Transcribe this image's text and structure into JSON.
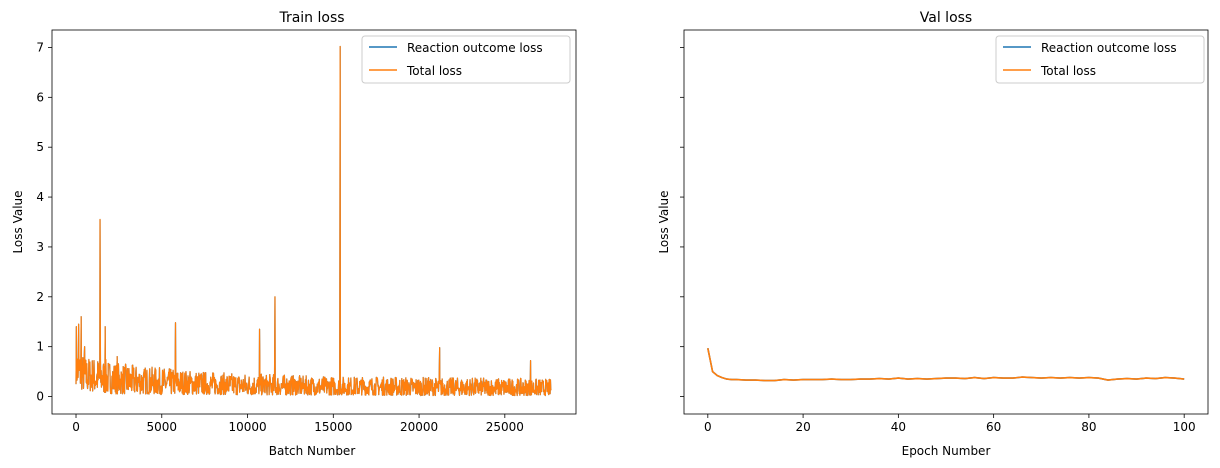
{
  "chart_data": [
    {
      "type": "line",
      "title": "Train loss",
      "xlabel": "Batch Number",
      "ylabel": "Loss Value",
      "xlim": [
        -1400,
        29150
      ],
      "ylim": [
        -0.35,
        7.35
      ],
      "xticks": [
        0,
        5000,
        10000,
        15000,
        20000,
        25000
      ],
      "xtick_labels": [
        "0",
        "5000",
        "10000",
        "15000",
        "20000",
        "25000"
      ],
      "yticks": [
        0,
        1,
        2,
        3,
        4,
        5,
        6,
        7
      ],
      "ytick_labels": [
        "0",
        "1",
        "2",
        "3",
        "4",
        "5",
        "6",
        "7"
      ],
      "grid": false,
      "legend_position": "top-right",
      "series": [
        {
          "name": "Reaction outcome loss",
          "color": "#1f77b4",
          "note_visual": "hidden beneath Total loss (identical values)",
          "x": [
            0,
            100,
            250,
            400,
            600,
            900,
            1200,
            1400,
            1650,
            2000,
            2500,
            3000,
            4000,
            5000,
            5800,
            7000,
            8500,
            10000,
            10700,
            11600,
            13000,
            15400,
            17000,
            19000,
            21200,
            23000,
            25000,
            26500,
            27700
          ],
          "low": [
            0.25,
            0.2,
            0.15,
            0.12,
            0.1,
            0.1,
            0.08,
            0.08,
            0.06,
            0.06,
            0.05,
            0.05,
            0.05,
            0.04,
            0.04,
            0.04,
            0.04,
            0.03,
            0.03,
            0.03,
            0.03,
            0.03,
            0.03,
            0.02,
            0.02,
            0.02,
            0.02,
            0.02,
            0.02
          ],
          "high": [
            1.1,
            1.0,
            0.9,
            0.85,
            0.8,
            0.8,
            0.78,
            0.78,
            0.75,
            0.72,
            0.68,
            0.65,
            0.6,
            0.58,
            0.55,
            0.52,
            0.48,
            0.46,
            0.45,
            0.45,
            0.42,
            0.4,
            0.4,
            0.4,
            0.38,
            0.38,
            0.37,
            0.36,
            0.35
          ]
        },
        {
          "name": "Total loss",
          "color": "#ff7f0e",
          "x": [
            0,
            100,
            250,
            400,
            600,
            900,
            1200,
            1400,
            1650,
            2000,
            2500,
            3000,
            4000,
            5000,
            5800,
            7000,
            8500,
            10000,
            10700,
            11600,
            13000,
            15400,
            17000,
            19000,
            21200,
            23000,
            25000,
            26500,
            27700
          ],
          "low": [
            0.25,
            0.2,
            0.15,
            0.12,
            0.1,
            0.1,
            0.08,
            0.08,
            0.06,
            0.06,
            0.05,
            0.05,
            0.05,
            0.04,
            0.04,
            0.04,
            0.04,
            0.03,
            0.03,
            0.03,
            0.03,
            0.03,
            0.03,
            0.02,
            0.02,
            0.02,
            0.02,
            0.02,
            0.02
          ],
          "high": [
            1.1,
            1.0,
            0.9,
            0.85,
            0.8,
            0.8,
            0.78,
            0.78,
            0.75,
            0.72,
            0.68,
            0.65,
            0.6,
            0.58,
            0.55,
            0.52,
            0.48,
            0.46,
            0.45,
            0.45,
            0.42,
            0.4,
            0.4,
            0.4,
            0.38,
            0.38,
            0.37,
            0.36,
            0.35
          ]
        }
      ],
      "spikes": [
        {
          "x": 20,
          "value": 1.4
        },
        {
          "x": 150,
          "value": 1.45
        },
        {
          "x": 300,
          "value": 1.6
        },
        {
          "x": 500,
          "value": 1.0
        },
        {
          "x": 1400,
          "value": 3.55
        },
        {
          "x": 1700,
          "value": 1.4
        },
        {
          "x": 2400,
          "value": 0.8
        },
        {
          "x": 5800,
          "value": 1.48
        },
        {
          "x": 10700,
          "value": 1.35
        },
        {
          "x": 11600,
          "value": 2.0
        },
        {
          "x": 15400,
          "value": 7.02
        },
        {
          "x": 21200,
          "value": 0.98
        },
        {
          "x": 26500,
          "value": 0.72
        }
      ]
    },
    {
      "type": "line",
      "title": "Val loss",
      "xlabel": "Epoch Number",
      "ylabel": "Loss Value",
      "xlim": [
        -5,
        105
      ],
      "ylim": [
        -0.35,
        7.35
      ],
      "xticks": [
        0,
        20,
        40,
        60,
        80,
        100
      ],
      "xtick_labels": [
        "0",
        "20",
        "40",
        "60",
        "80",
        "100"
      ],
      "grid": false,
      "legend_position": "top-right",
      "shares_y_with_left": true,
      "series": [
        {
          "name": "Reaction outcome loss",
          "color": "#1f77b4",
          "x": [
            0,
            1,
            2,
            3,
            4,
            5,
            6,
            8,
            10,
            12,
            14,
            16,
            18,
            20,
            22,
            24,
            26,
            28,
            30,
            32,
            34,
            36,
            38,
            40,
            42,
            44,
            46,
            48,
            50,
            52,
            54,
            56,
            58,
            60,
            62,
            64,
            66,
            68,
            70,
            72,
            74,
            76,
            78,
            80,
            82,
            84,
            86,
            88,
            90,
            92,
            94,
            96,
            98,
            100
          ],
          "y": [
            0.97,
            0.5,
            0.42,
            0.38,
            0.35,
            0.34,
            0.34,
            0.33,
            0.33,
            0.32,
            0.32,
            0.34,
            0.33,
            0.34,
            0.34,
            0.34,
            0.35,
            0.34,
            0.34,
            0.35,
            0.35,
            0.36,
            0.35,
            0.37,
            0.35,
            0.36,
            0.35,
            0.36,
            0.37,
            0.37,
            0.36,
            0.38,
            0.36,
            0.38,
            0.37,
            0.37,
            0.39,
            0.38,
            0.37,
            0.38,
            0.37,
            0.38,
            0.37,
            0.38,
            0.37,
            0.33,
            0.35,
            0.36,
            0.35,
            0.37,
            0.36,
            0.38,
            0.37,
            0.35
          ]
        },
        {
          "name": "Total loss",
          "color": "#ff7f0e",
          "x": [
            0,
            1,
            2,
            3,
            4,
            5,
            6,
            8,
            10,
            12,
            14,
            16,
            18,
            20,
            22,
            24,
            26,
            28,
            30,
            32,
            34,
            36,
            38,
            40,
            42,
            44,
            46,
            48,
            50,
            52,
            54,
            56,
            58,
            60,
            62,
            64,
            66,
            68,
            70,
            72,
            74,
            76,
            78,
            80,
            82,
            84,
            86,
            88,
            90,
            92,
            94,
            96,
            98,
            100
          ],
          "y": [
            0.97,
            0.5,
            0.42,
            0.38,
            0.35,
            0.34,
            0.34,
            0.33,
            0.33,
            0.32,
            0.32,
            0.34,
            0.33,
            0.34,
            0.34,
            0.34,
            0.35,
            0.34,
            0.34,
            0.35,
            0.35,
            0.36,
            0.35,
            0.37,
            0.35,
            0.36,
            0.35,
            0.36,
            0.37,
            0.37,
            0.36,
            0.38,
            0.36,
            0.38,
            0.37,
            0.37,
            0.39,
            0.38,
            0.37,
            0.38,
            0.37,
            0.38,
            0.37,
            0.38,
            0.37,
            0.33,
            0.35,
            0.36,
            0.35,
            0.37,
            0.36,
            0.38,
            0.37,
            0.35
          ]
        }
      ]
    }
  ]
}
